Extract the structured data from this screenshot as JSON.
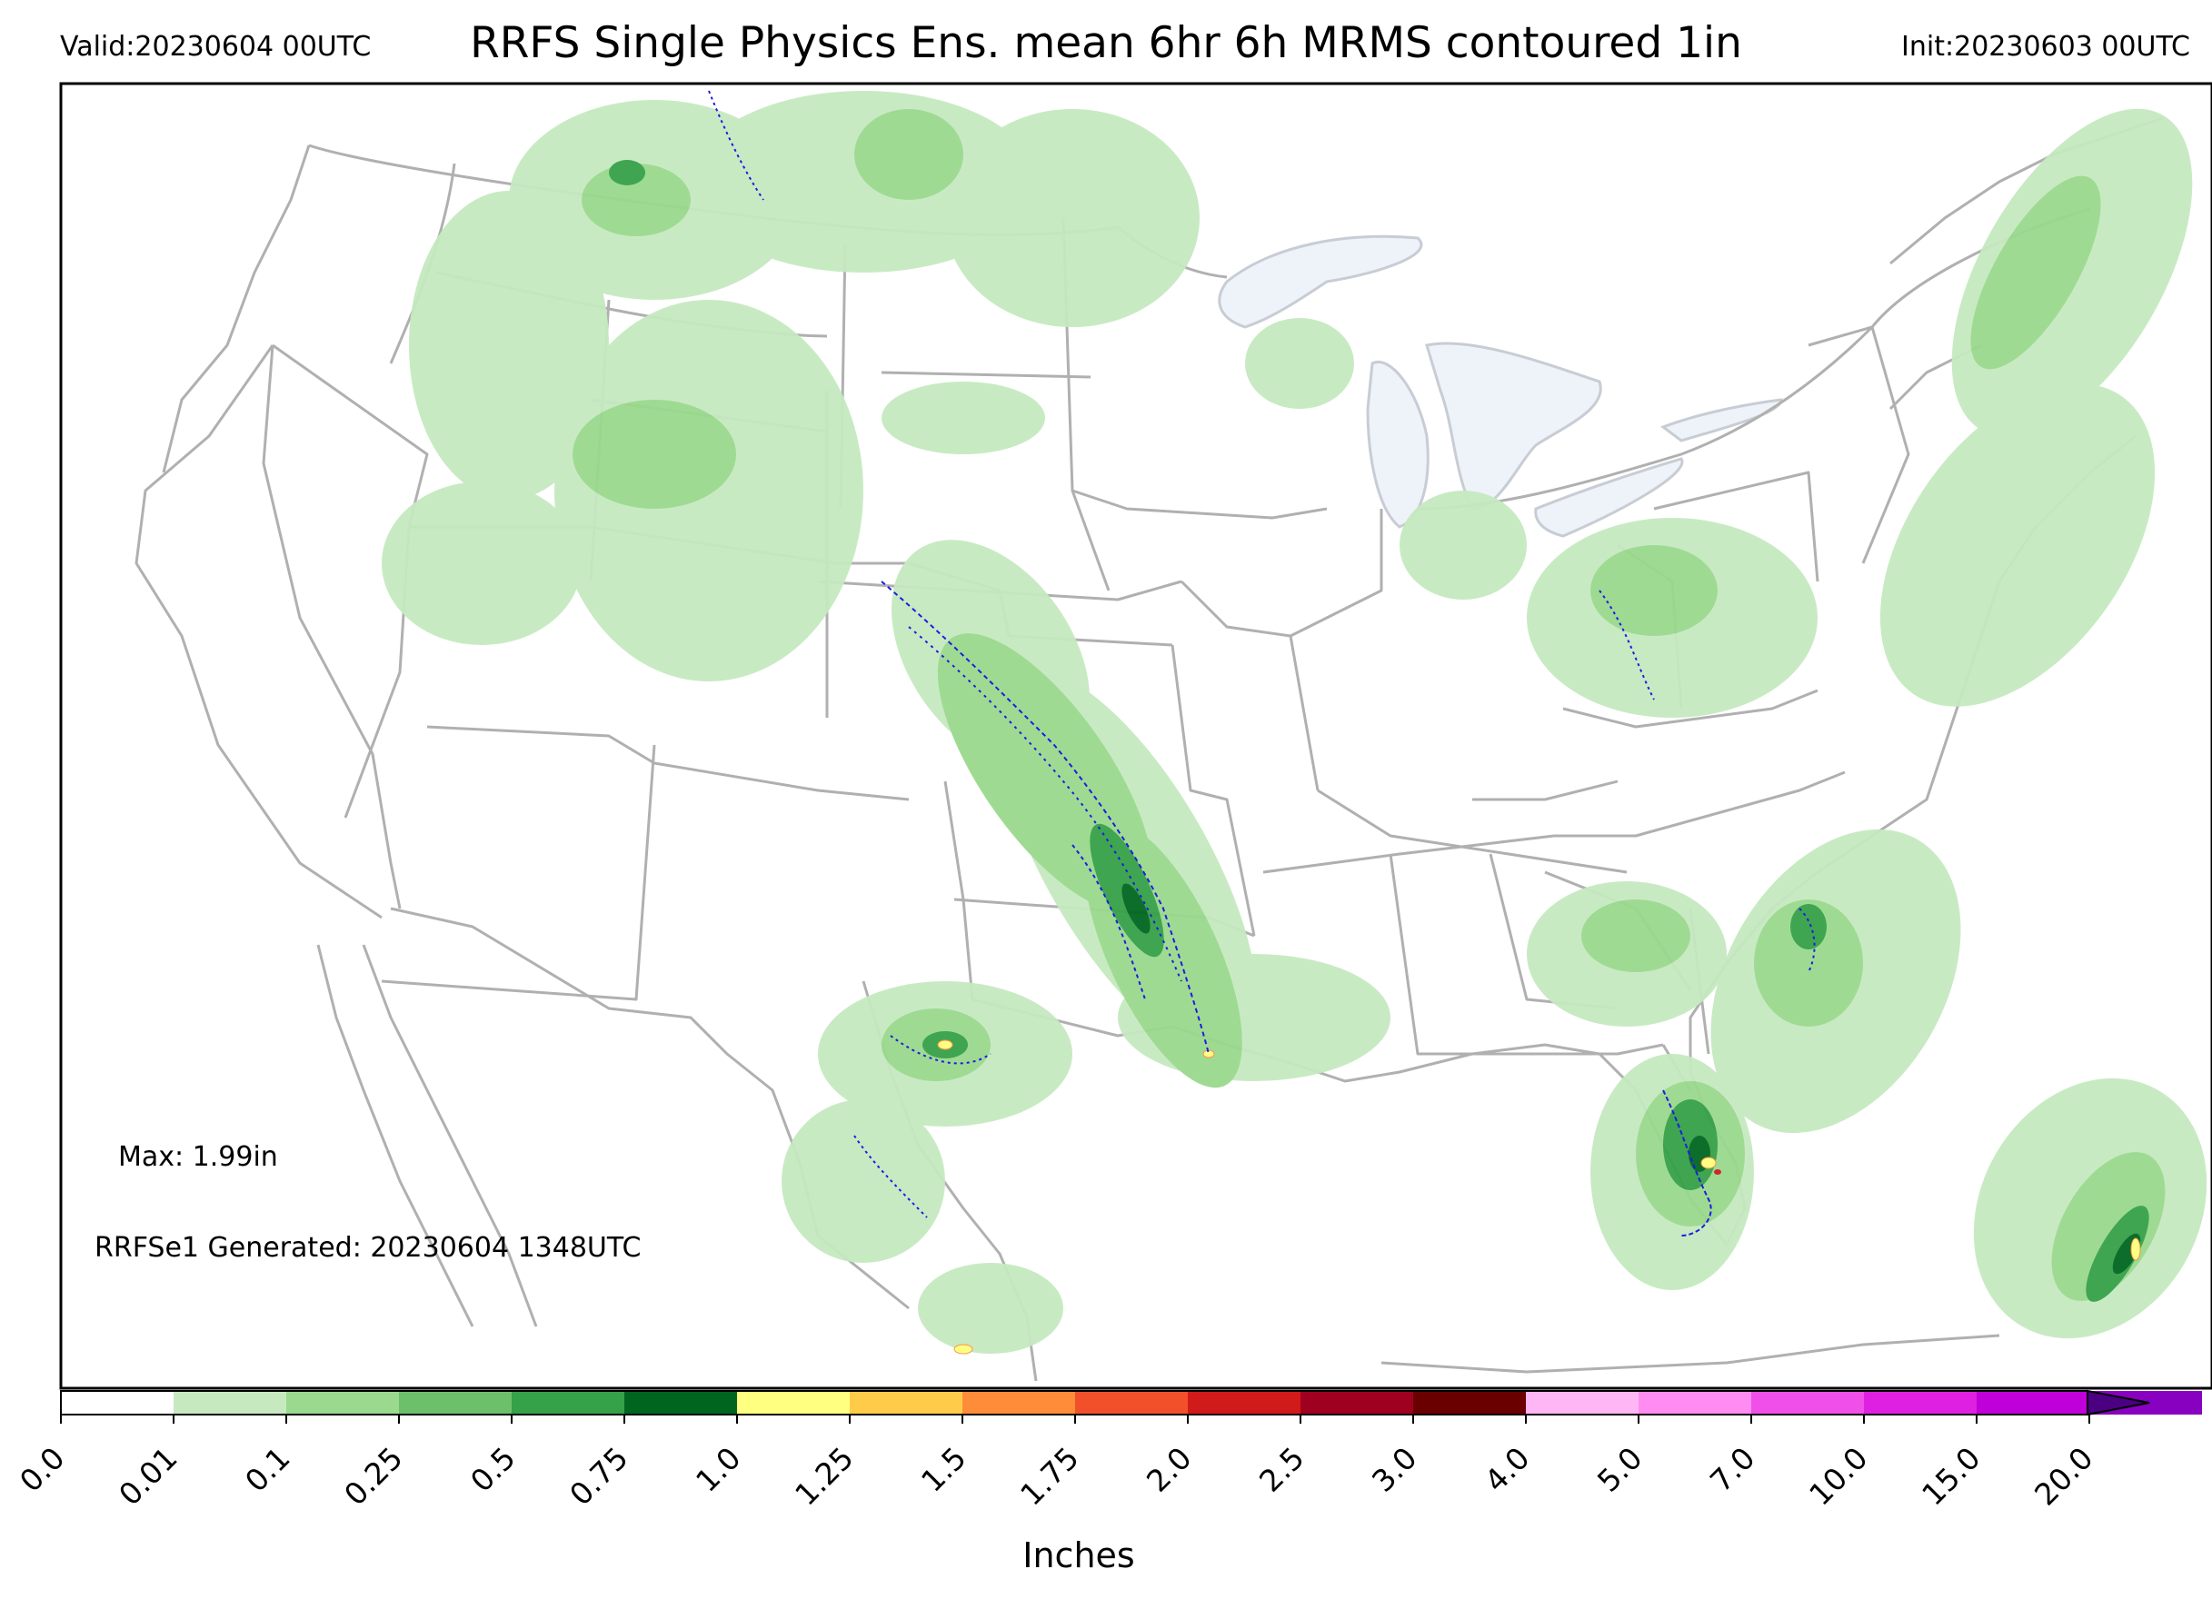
{
  "header": {
    "valid": "Valid:20230604 00UTC",
    "title": "RRFS Single Physics Ens. mean 6hr 6h MRMS contoured 1in",
    "init": "Init:20230603 00UTC"
  },
  "annotations": {
    "max": "Max: 1.99in",
    "generated": "RRFSe1 Generated: 20230604 1348UTC"
  },
  "colorbar": {
    "label": "Inches",
    "ticks": [
      "0.0",
      "0.01",
      "0.1",
      "0.25",
      "0.5",
      "0.75",
      "1.0",
      "1.25",
      "1.5",
      "1.75",
      "2.0",
      "2.5",
      "3.0",
      "4.0",
      "5.0",
      "7.0",
      "10.0",
      "15.0",
      "20.0"
    ],
    "colors": [
      "#ffffff",
      "#c6e9c0",
      "#9ad98e",
      "#6cc06a",
      "#35a148",
      "#00661f",
      "#ffff80",
      "#ffcc4a",
      "#ff8c38",
      "#f2502a",
      "#d11a1a",
      "#a00020",
      "#6b0000",
      "#ffb6f5",
      "#ff8cf0",
      "#f050e8",
      "#e020e0",
      "#c000d8",
      "#8800c0"
    ],
    "extend_color": "#4b0082"
  },
  "legend_colors": {
    "contour_1in": "#1c1ce0",
    "borders": "#b0b0b0",
    "water": "#eef3fa"
  }
}
